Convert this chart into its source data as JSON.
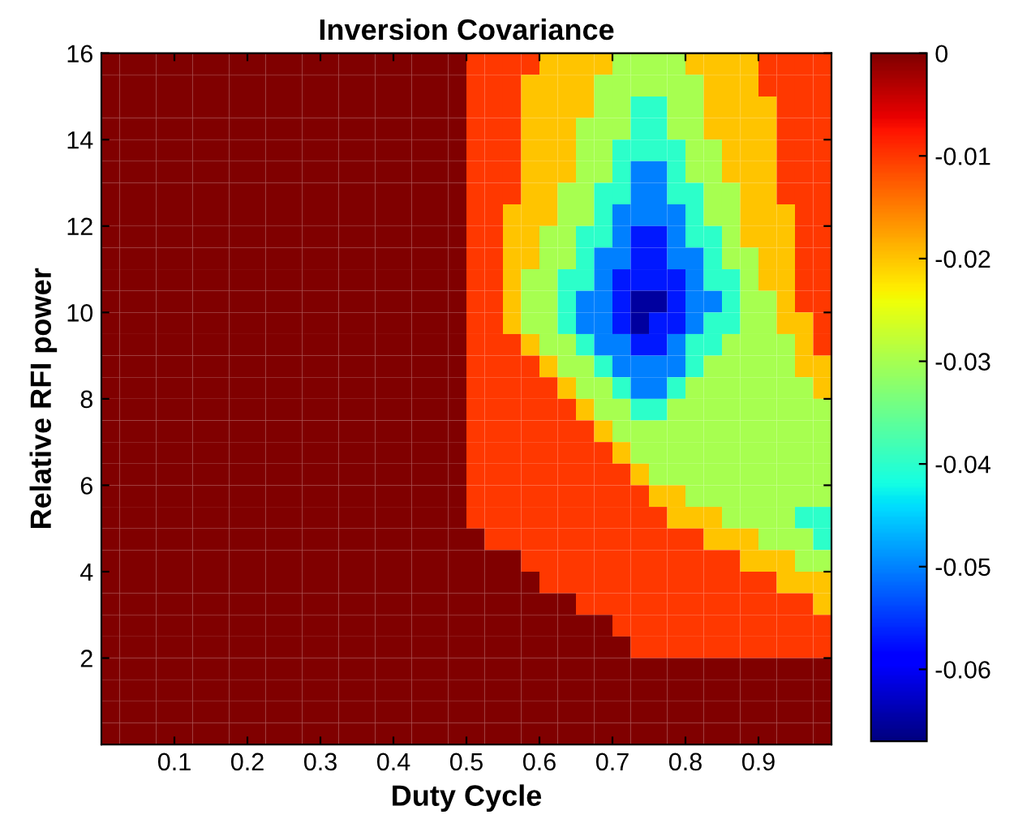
{
  "chart_data": {
    "type": "heatmap",
    "title": "Inversion Covariance",
    "xlabel": "Duty Cycle",
    "ylabel": "Relative RFI power",
    "x": [
      0.0125,
      0.0375,
      0.0625,
      0.0875,
      0.1125,
      0.1375,
      0.1625,
      0.1875,
      0.2125,
      0.2375,
      0.2625,
      0.2875,
      0.3125,
      0.3375,
      0.3625,
      0.3875,
      0.4125,
      0.4375,
      0.4625,
      0.4875,
      0.5125,
      0.5375,
      0.5625,
      0.5875,
      0.6125,
      0.6375,
      0.6625,
      0.6875,
      0.7125,
      0.7375,
      0.7625,
      0.7875,
      0.8125,
      0.8375,
      0.8625,
      0.8875,
      0.9125,
      0.9375,
      0.9625,
      0.9875
    ],
    "y": [
      15.75,
      15.25,
      14.75,
      14.25,
      13.75,
      13.25,
      12.75,
      12.25,
      11.75,
      11.25,
      10.75,
      10.25,
      9.75,
      9.25,
      8.75,
      8.25,
      7.75,
      7.25,
      6.75,
      6.25,
      5.75,
      5.25,
      4.75,
      4.25,
      3.75,
      3.25,
      2.75,
      2.25,
      1.75,
      1.25,
      0.75,
      0.25
    ],
    "cells": [
      [
        0,
        0,
        0,
        0,
        0,
        0,
        0,
        0,
        0,
        0,
        0,
        0,
        0,
        0,
        0,
        0,
        0,
        0,
        0,
        0,
        -0.01,
        -0.01,
        -0.01,
        -0.01,
        -0.02,
        -0.02,
        -0.02,
        -0.02,
        -0.03,
        -0.03,
        -0.03,
        -0.03,
        -0.02,
        -0.02,
        -0.02,
        -0.02,
        -0.01,
        -0.01,
        -0.01,
        -0.01
      ],
      [
        0,
        0,
        0,
        0,
        0,
        0,
        0,
        0,
        0,
        0,
        0,
        0,
        0,
        0,
        0,
        0,
        0,
        0,
        0,
        0,
        -0.01,
        -0.01,
        -0.01,
        -0.02,
        -0.02,
        -0.02,
        -0.02,
        -0.03,
        -0.03,
        -0.03,
        -0.03,
        -0.03,
        -0.03,
        -0.02,
        -0.02,
        -0.02,
        -0.01,
        -0.01,
        -0.01,
        -0.01
      ],
      [
        0,
        0,
        0,
        0,
        0,
        0,
        0,
        0,
        0,
        0,
        0,
        0,
        0,
        0,
        0,
        0,
        0,
        0,
        0,
        0,
        -0.01,
        -0.01,
        -0.01,
        -0.02,
        -0.02,
        -0.02,
        -0.02,
        -0.03,
        -0.03,
        -0.04,
        -0.04,
        -0.03,
        -0.03,
        -0.02,
        -0.02,
        -0.02,
        -0.02,
        -0.01,
        -0.01,
        -0.01
      ],
      [
        0,
        0,
        0,
        0,
        0,
        0,
        0,
        0,
        0,
        0,
        0,
        0,
        0,
        0,
        0,
        0,
        0,
        0,
        0,
        0,
        -0.01,
        -0.01,
        -0.01,
        -0.02,
        -0.02,
        -0.02,
        -0.03,
        -0.03,
        -0.03,
        -0.04,
        -0.04,
        -0.03,
        -0.03,
        -0.02,
        -0.02,
        -0.02,
        -0.02,
        -0.01,
        -0.01,
        -0.01
      ],
      [
        0,
        0,
        0,
        0,
        0,
        0,
        0,
        0,
        0,
        0,
        0,
        0,
        0,
        0,
        0,
        0,
        0,
        0,
        0,
        0,
        -0.01,
        -0.01,
        -0.01,
        -0.02,
        -0.02,
        -0.02,
        -0.03,
        -0.03,
        -0.04,
        -0.04,
        -0.04,
        -0.04,
        -0.03,
        -0.03,
        -0.02,
        -0.02,
        -0.02,
        -0.01,
        -0.01,
        -0.01
      ],
      [
        0,
        0,
        0,
        0,
        0,
        0,
        0,
        0,
        0,
        0,
        0,
        0,
        0,
        0,
        0,
        0,
        0,
        0,
        0,
        0,
        -0.01,
        -0.01,
        -0.01,
        -0.02,
        -0.02,
        -0.02,
        -0.03,
        -0.03,
        -0.04,
        -0.05,
        -0.05,
        -0.04,
        -0.03,
        -0.03,
        -0.02,
        -0.02,
        -0.02,
        -0.01,
        -0.01,
        -0.01
      ],
      [
        0,
        0,
        0,
        0,
        0,
        0,
        0,
        0,
        0,
        0,
        0,
        0,
        0,
        0,
        0,
        0,
        0,
        0,
        0,
        0,
        -0.01,
        -0.01,
        -0.01,
        -0.02,
        -0.02,
        -0.03,
        -0.03,
        -0.04,
        -0.04,
        -0.05,
        -0.05,
        -0.04,
        -0.04,
        -0.03,
        -0.03,
        -0.02,
        -0.02,
        -0.01,
        -0.01,
        -0.01
      ],
      [
        0,
        0,
        0,
        0,
        0,
        0,
        0,
        0,
        0,
        0,
        0,
        0,
        0,
        0,
        0,
        0,
        0,
        0,
        0,
        0,
        -0.01,
        -0.01,
        -0.02,
        -0.02,
        -0.02,
        -0.03,
        -0.03,
        -0.04,
        -0.05,
        -0.05,
        -0.05,
        -0.05,
        -0.04,
        -0.03,
        -0.03,
        -0.02,
        -0.02,
        -0.02,
        -0.01,
        -0.01
      ],
      [
        0,
        0,
        0,
        0,
        0,
        0,
        0,
        0,
        0,
        0,
        0,
        0,
        0,
        0,
        0,
        0,
        0,
        0,
        0,
        0,
        -0.01,
        -0.01,
        -0.02,
        -0.02,
        -0.03,
        -0.03,
        -0.04,
        -0.04,
        -0.05,
        -0.057,
        -0.057,
        -0.05,
        -0.04,
        -0.04,
        -0.03,
        -0.02,
        -0.02,
        -0.02,
        -0.01,
        -0.01
      ],
      [
        0,
        0,
        0,
        0,
        0,
        0,
        0,
        0,
        0,
        0,
        0,
        0,
        0,
        0,
        0,
        0,
        0,
        0,
        0,
        0,
        -0.01,
        -0.01,
        -0.02,
        -0.02,
        -0.03,
        -0.03,
        -0.04,
        -0.05,
        -0.05,
        -0.057,
        -0.057,
        -0.05,
        -0.05,
        -0.04,
        -0.03,
        -0.03,
        -0.02,
        -0.02,
        -0.01,
        -0.01
      ],
      [
        0,
        0,
        0,
        0,
        0,
        0,
        0,
        0,
        0,
        0,
        0,
        0,
        0,
        0,
        0,
        0,
        0,
        0,
        0,
        0,
        -0.01,
        -0.01,
        -0.02,
        -0.03,
        -0.03,
        -0.04,
        -0.04,
        -0.05,
        -0.057,
        -0.057,
        -0.057,
        -0.057,
        -0.05,
        -0.04,
        -0.04,
        -0.03,
        -0.02,
        -0.02,
        -0.01,
        -0.01
      ],
      [
        0,
        0,
        0,
        0,
        0,
        0,
        0,
        0,
        0,
        0,
        0,
        0,
        0,
        0,
        0,
        0,
        0,
        0,
        0,
        0,
        -0.01,
        -0.01,
        -0.02,
        -0.03,
        -0.03,
        -0.04,
        -0.05,
        -0.05,
        -0.057,
        -0.065,
        -0.065,
        -0.057,
        -0.05,
        -0.05,
        -0.04,
        -0.03,
        -0.03,
        -0.02,
        -0.01,
        -0.01
      ],
      [
        0,
        0,
        0,
        0,
        0,
        0,
        0,
        0,
        0,
        0,
        0,
        0,
        0,
        0,
        0,
        0,
        0,
        0,
        0,
        0,
        -0.01,
        -0.01,
        -0.02,
        -0.03,
        -0.03,
        -0.04,
        -0.05,
        -0.05,
        -0.057,
        -0.065,
        -0.057,
        -0.057,
        -0.05,
        -0.04,
        -0.04,
        -0.03,
        -0.03,
        -0.02,
        -0.02,
        -0.01
      ],
      [
        0,
        0,
        0,
        0,
        0,
        0,
        0,
        0,
        0,
        0,
        0,
        0,
        0,
        0,
        0,
        0,
        0,
        0,
        0,
        0,
        -0.01,
        -0.01,
        -0.01,
        -0.02,
        -0.03,
        -0.03,
        -0.04,
        -0.05,
        -0.05,
        -0.057,
        -0.057,
        -0.05,
        -0.04,
        -0.04,
        -0.03,
        -0.03,
        -0.03,
        -0.03,
        -0.02,
        -0.01
      ],
      [
        0,
        0,
        0,
        0,
        0,
        0,
        0,
        0,
        0,
        0,
        0,
        0,
        0,
        0,
        0,
        0,
        0,
        0,
        0,
        0,
        -0.01,
        -0.01,
        -0.01,
        -0.01,
        -0.02,
        -0.03,
        -0.03,
        -0.04,
        -0.05,
        -0.05,
        -0.05,
        -0.05,
        -0.04,
        -0.03,
        -0.03,
        -0.03,
        -0.03,
        -0.03,
        -0.02,
        -0.02
      ],
      [
        0,
        0,
        0,
        0,
        0,
        0,
        0,
        0,
        0,
        0,
        0,
        0,
        0,
        0,
        0,
        0,
        0,
        0,
        0,
        0,
        -0.01,
        -0.01,
        -0.01,
        -0.01,
        -0.01,
        -0.02,
        -0.03,
        -0.03,
        -0.04,
        -0.05,
        -0.05,
        -0.04,
        -0.03,
        -0.03,
        -0.03,
        -0.03,
        -0.03,
        -0.03,
        -0.03,
        -0.02
      ],
      [
        0,
        0,
        0,
        0,
        0,
        0,
        0,
        0,
        0,
        0,
        0,
        0,
        0,
        0,
        0,
        0,
        0,
        0,
        0,
        0,
        -0.01,
        -0.01,
        -0.01,
        -0.01,
        -0.01,
        -0.01,
        -0.02,
        -0.03,
        -0.03,
        -0.04,
        -0.04,
        -0.03,
        -0.03,
        -0.03,
        -0.03,
        -0.03,
        -0.03,
        -0.03,
        -0.03,
        -0.03
      ],
      [
        0,
        0,
        0,
        0,
        0,
        0,
        0,
        0,
        0,
        0,
        0,
        0,
        0,
        0,
        0,
        0,
        0,
        0,
        0,
        0,
        -0.01,
        -0.01,
        -0.01,
        -0.01,
        -0.01,
        -0.01,
        -0.01,
        -0.02,
        -0.03,
        -0.03,
        -0.03,
        -0.03,
        -0.03,
        -0.03,
        -0.03,
        -0.03,
        -0.03,
        -0.03,
        -0.03,
        -0.03
      ],
      [
        0,
        0,
        0,
        0,
        0,
        0,
        0,
        0,
        0,
        0,
        0,
        0,
        0,
        0,
        0,
        0,
        0,
        0,
        0,
        0,
        -0.01,
        -0.01,
        -0.01,
        -0.01,
        -0.01,
        -0.01,
        -0.01,
        -0.01,
        -0.02,
        -0.03,
        -0.03,
        -0.03,
        -0.03,
        -0.03,
        -0.03,
        -0.03,
        -0.03,
        -0.03,
        -0.03,
        -0.03
      ],
      [
        0,
        0,
        0,
        0,
        0,
        0,
        0,
        0,
        0,
        0,
        0,
        0,
        0,
        0,
        0,
        0,
        0,
        0,
        0,
        0,
        -0.01,
        -0.01,
        -0.01,
        -0.01,
        -0.01,
        -0.01,
        -0.01,
        -0.01,
        -0.01,
        -0.02,
        -0.03,
        -0.03,
        -0.03,
        -0.03,
        -0.03,
        -0.03,
        -0.03,
        -0.03,
        -0.03,
        -0.03
      ],
      [
        0,
        0,
        0,
        0,
        0,
        0,
        0,
        0,
        0,
        0,
        0,
        0,
        0,
        0,
        0,
        0,
        0,
        0,
        0,
        0,
        -0.01,
        -0.01,
        -0.01,
        -0.01,
        -0.01,
        -0.01,
        -0.01,
        -0.01,
        -0.01,
        -0.01,
        -0.02,
        -0.02,
        -0.03,
        -0.03,
        -0.03,
        -0.03,
        -0.03,
        -0.03,
        -0.03,
        -0.03
      ],
      [
        0,
        0,
        0,
        0,
        0,
        0,
        0,
        0,
        0,
        0,
        0,
        0,
        0,
        0,
        0,
        0,
        0,
        0,
        0,
        0,
        -0.01,
        -0.01,
        -0.01,
        -0.01,
        -0.01,
        -0.01,
        -0.01,
        -0.01,
        -0.01,
        -0.01,
        -0.01,
        -0.02,
        -0.02,
        -0.02,
        -0.03,
        -0.03,
        -0.03,
        -0.03,
        -0.04,
        -0.04
      ],
      [
        0,
        0,
        0,
        0,
        0,
        0,
        0,
        0,
        0,
        0,
        0,
        0,
        0,
        0,
        0,
        0,
        0,
        0,
        0,
        0,
        0,
        -0.01,
        -0.01,
        -0.01,
        -0.01,
        -0.01,
        -0.01,
        -0.01,
        -0.01,
        -0.01,
        -0.01,
        -0.01,
        -0.01,
        -0.02,
        -0.02,
        -0.02,
        -0.03,
        -0.03,
        -0.03,
        -0.04
      ],
      [
        0,
        0,
        0,
        0,
        0,
        0,
        0,
        0,
        0,
        0,
        0,
        0,
        0,
        0,
        0,
        0,
        0,
        0,
        0,
        0,
        0,
        0,
        0,
        -0.01,
        -0.01,
        -0.01,
        -0.01,
        -0.01,
        -0.01,
        -0.01,
        -0.01,
        -0.01,
        -0.01,
        -0.01,
        -0.01,
        -0.02,
        -0.02,
        -0.02,
        -0.03,
        -0.03
      ],
      [
        0,
        0,
        0,
        0,
        0,
        0,
        0,
        0,
        0,
        0,
        0,
        0,
        0,
        0,
        0,
        0,
        0,
        0,
        0,
        0,
        0,
        0,
        0,
        0,
        -0.01,
        -0.01,
        -0.01,
        -0.01,
        -0.01,
        -0.01,
        -0.01,
        -0.01,
        -0.01,
        -0.01,
        -0.01,
        -0.01,
        -0.01,
        -0.02,
        -0.02,
        -0.02
      ],
      [
        0,
        0,
        0,
        0,
        0,
        0,
        0,
        0,
        0,
        0,
        0,
        0,
        0,
        0,
        0,
        0,
        0,
        0,
        0,
        0,
        0,
        0,
        0,
        0,
        0,
        0,
        -0.01,
        -0.01,
        -0.01,
        -0.01,
        -0.01,
        -0.01,
        -0.01,
        -0.01,
        -0.01,
        -0.01,
        -0.01,
        -0.01,
        -0.01,
        -0.02
      ],
      [
        0,
        0,
        0,
        0,
        0,
        0,
        0,
        0,
        0,
        0,
        0,
        0,
        0,
        0,
        0,
        0,
        0,
        0,
        0,
        0,
        0,
        0,
        0,
        0,
        0,
        0,
        0,
        0,
        -0.01,
        -0.01,
        -0.01,
        -0.01,
        -0.01,
        -0.01,
        -0.01,
        -0.01,
        -0.01,
        -0.01,
        -0.01,
        -0.01
      ],
      [
        0,
        0,
        0,
        0,
        0,
        0,
        0,
        0,
        0,
        0,
        0,
        0,
        0,
        0,
        0,
        0,
        0,
        0,
        0,
        0,
        0,
        0,
        0,
        0,
        0,
        0,
        0,
        0,
        0,
        -0.01,
        -0.01,
        -0.01,
        -0.01,
        -0.01,
        -0.01,
        -0.01,
        -0.01,
        -0.01,
        -0.01,
        -0.01
      ],
      [
        0,
        0,
        0,
        0,
        0,
        0,
        0,
        0,
        0,
        0,
        0,
        0,
        0,
        0,
        0,
        0,
        0,
        0,
        0,
        0,
        0,
        0,
        0,
        0,
        0,
        0,
        0,
        0,
        0,
        0,
        0,
        0,
        0,
        0,
        0,
        0,
        0,
        0,
        0,
        0
      ],
      [
        0,
        0,
        0,
        0,
        0,
        0,
        0,
        0,
        0,
        0,
        0,
        0,
        0,
        0,
        0,
        0,
        0,
        0,
        0,
        0,
        0,
        0,
        0,
        0,
        0,
        0,
        0,
        0,
        0,
        0,
        0,
        0,
        0,
        0,
        0,
        0,
        0,
        0,
        0,
        0
      ],
      [
        0,
        0,
        0,
        0,
        0,
        0,
        0,
        0,
        0,
        0,
        0,
        0,
        0,
        0,
        0,
        0,
        0,
        0,
        0,
        0,
        0,
        0,
        0,
        0,
        0,
        0,
        0,
        0,
        0,
        0,
        0,
        0,
        0,
        0,
        0,
        0,
        0,
        0,
        0,
        0
      ],
      [
        0,
        0,
        0,
        0,
        0,
        0,
        0,
        0,
        0,
        0,
        0,
        0,
        0,
        0,
        0,
        0,
        0,
        0,
        0,
        0,
        0,
        0,
        0,
        0,
        0,
        0,
        0,
        0,
        0,
        0,
        0,
        0,
        0,
        0,
        0,
        0,
        0,
        0,
        0,
        0
      ]
    ],
    "xlim": [
      0,
      1
    ],
    "xticks": [
      0.1,
      0.2,
      0.3,
      0.4,
      0.5,
      0.6,
      0.7,
      0.8,
      0.9
    ],
    "ylim": [
      0,
      16
    ],
    "yticks": [
      2,
      4,
      6,
      8,
      10,
      12,
      14,
      16
    ],
    "clim": [
      -0.067,
      0
    ],
    "cticks": [
      0,
      -0.01,
      -0.02,
      -0.03,
      -0.04,
      -0.05,
      -0.06
    ]
  }
}
